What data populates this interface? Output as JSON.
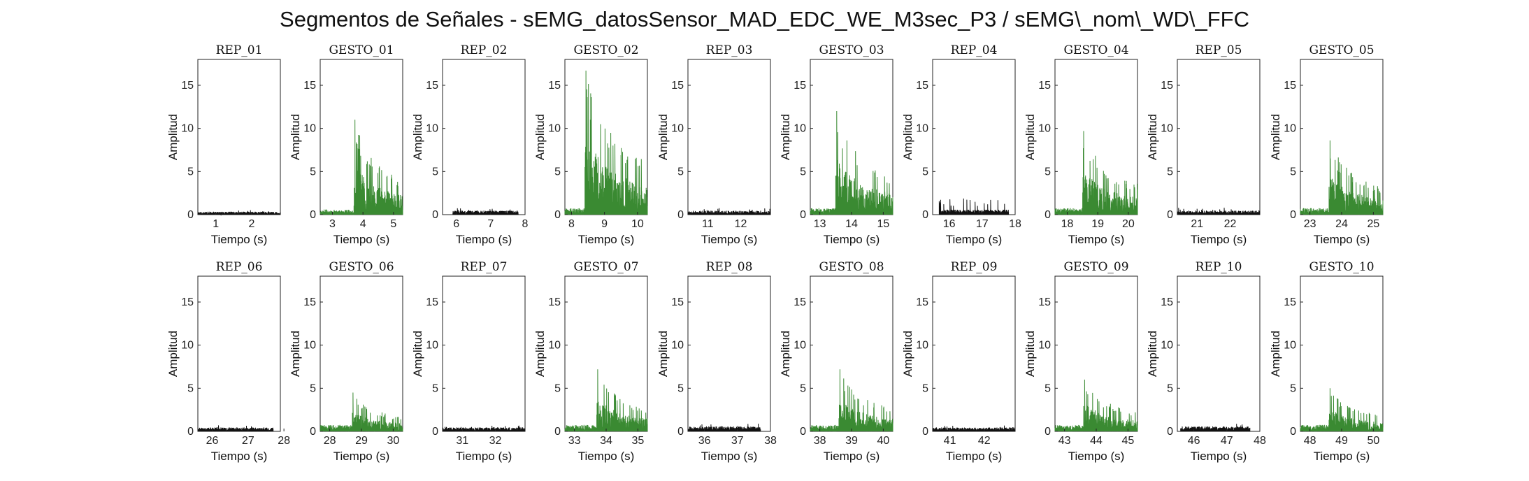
{
  "figure": {
    "title": "Segmentos de Señales - sEMG_datosSensor_MAD_EDC_WE_M3sec_P3 / sEMG\\_nom\\_WD\\_FFC"
  },
  "colors": {
    "rep": "#111111",
    "gesto": "#3a8a32",
    "axis": "#222222",
    "background": "#ffffff"
  },
  "chart_data": [
    {
      "type": "line",
      "title": "REP_01",
      "xlabel": "Tiempo (s)",
      "ylabel": "Amplitud",
      "xlim": [
        0.5,
        2.8
      ],
      "ylim": [
        0,
        18
      ],
      "xticks": [
        1,
        2
      ],
      "yticks": [
        0,
        5,
        10,
        15
      ],
      "series": [
        {
          "kind": "rep",
          "t0": 0.5,
          "t1": 2.8,
          "onset": null,
          "base": 0.3,
          "peak": 0.6
        }
      ]
    },
    {
      "type": "line",
      "title": "GESTO_01",
      "xlabel": "Tiempo (s)",
      "ylabel": "Amplitud",
      "xlim": [
        2.6,
        5.3
      ],
      "ylim": [
        0,
        18
      ],
      "xticks": [
        3,
        4,
        5
      ],
      "yticks": [
        0,
        5,
        10,
        15
      ],
      "series": [
        {
          "kind": "gesto",
          "t0": 2.6,
          "t1": 5.3,
          "onset": 3.7,
          "base": 0.4,
          "peak": 11.0
        }
      ]
    },
    {
      "type": "line",
      "title": "REP_02",
      "xlabel": "Tiempo (s)",
      "ylabel": "Amplitud",
      "xlim": [
        5.6,
        8.0
      ],
      "ylim": [
        0,
        18
      ],
      "xticks": [
        6,
        7,
        8
      ],
      "yticks": [
        0,
        5,
        10,
        15
      ],
      "series": [
        {
          "kind": "rep",
          "t0": 5.9,
          "t1": 7.8,
          "onset": null,
          "base": 0.4,
          "peak": 0.8
        }
      ]
    },
    {
      "type": "line",
      "title": "GESTO_02",
      "xlabel": "Tiempo (s)",
      "ylabel": "Amplitud",
      "xlim": [
        7.8,
        10.3
      ],
      "ylim": [
        0,
        18
      ],
      "xticks": [
        8,
        9,
        10
      ],
      "yticks": [
        0,
        5,
        10,
        15
      ],
      "series": [
        {
          "kind": "gesto",
          "t0": 7.8,
          "t1": 10.3,
          "onset": 8.4,
          "base": 0.5,
          "peak": 16.7
        }
      ]
    },
    {
      "type": "line",
      "title": "REP_03",
      "xlabel": "Tiempo (s)",
      "ylabel": "Amplitud",
      "xlim": [
        10.4,
        12.9
      ],
      "ylim": [
        0,
        18
      ],
      "xticks": [
        11,
        12
      ],
      "yticks": [
        0,
        5,
        10,
        15
      ],
      "series": [
        {
          "kind": "rep",
          "t0": 10.4,
          "t1": 12.9,
          "onset": null,
          "base": 0.4,
          "peak": 0.8
        }
      ]
    },
    {
      "type": "line",
      "title": "GESTO_03",
      "xlabel": "Tiempo (s)",
      "ylabel": "Amplitud",
      "xlim": [
        12.7,
        15.3
      ],
      "ylim": [
        0,
        18
      ],
      "xticks": [
        13,
        14,
        15
      ],
      "yticks": [
        0,
        5,
        10,
        15
      ],
      "series": [
        {
          "kind": "gesto",
          "t0": 12.7,
          "t1": 15.3,
          "onset": 13.5,
          "base": 0.5,
          "peak": 12.0
        }
      ]
    },
    {
      "type": "line",
      "title": "REP_04",
      "xlabel": "Tiempo (s)",
      "ylabel": "Amplitud",
      "xlim": [
        15.5,
        18.0
      ],
      "ylim": [
        0,
        18
      ],
      "xticks": [
        16,
        17,
        18
      ],
      "yticks": [
        0,
        5,
        10,
        15
      ],
      "series": [
        {
          "kind": "rep",
          "t0": 15.7,
          "t1": 17.8,
          "onset": null,
          "base": 0.5,
          "peak": 2.0
        }
      ]
    },
    {
      "type": "line",
      "title": "GESTO_04",
      "xlabel": "Tiempo (s)",
      "ylabel": "Amplitud",
      "xlim": [
        17.6,
        20.3
      ],
      "ylim": [
        0,
        18
      ],
      "xticks": [
        18,
        19,
        20
      ],
      "yticks": [
        0,
        5,
        10,
        15
      ],
      "series": [
        {
          "kind": "gesto",
          "t0": 17.6,
          "t1": 20.3,
          "onset": 18.5,
          "base": 0.5,
          "peak": 9.7
        }
      ]
    },
    {
      "type": "line",
      "title": "REP_05",
      "xlabel": "Tiempo (s)",
      "ylabel": "Amplitud",
      "xlim": [
        20.4,
        22.9
      ],
      "ylim": [
        0,
        18
      ],
      "xticks": [
        21,
        22
      ],
      "yticks": [
        0,
        5,
        10,
        15
      ],
      "series": [
        {
          "kind": "rep",
          "t0": 20.4,
          "t1": 22.9,
          "onset": null,
          "base": 0.4,
          "peak": 0.8
        }
      ]
    },
    {
      "type": "line",
      "title": "GESTO_05",
      "xlabel": "Tiempo (s)",
      "ylabel": "Amplitud",
      "xlim": [
        22.7,
        25.3
      ],
      "ylim": [
        0,
        18
      ],
      "xticks": [
        23,
        24,
        25
      ],
      "yticks": [
        0,
        5,
        10,
        15
      ],
      "series": [
        {
          "kind": "gesto",
          "t0": 22.7,
          "t1": 25.3,
          "onset": 23.6,
          "base": 0.5,
          "peak": 8.6
        }
      ]
    },
    {
      "type": "line",
      "title": "REP_06",
      "xlabel": "Tiempo (s)",
      "ylabel": "Amplitud",
      "xlim": [
        25.6,
        27.9
      ],
      "ylim": [
        0,
        18
      ],
      "xticks": [
        26,
        27,
        28
      ],
      "yticks": [
        0,
        5,
        10,
        15
      ],
      "series": [
        {
          "kind": "rep",
          "t0": 25.6,
          "t1": 27.7,
          "onset": null,
          "base": 0.4,
          "peak": 0.7
        }
      ]
    },
    {
      "type": "line",
      "title": "GESTO_06",
      "xlabel": "Tiempo (s)",
      "ylabel": "Amplitud",
      "xlim": [
        27.7,
        30.3
      ],
      "ylim": [
        0,
        18
      ],
      "xticks": [
        28,
        29,
        30
      ],
      "yticks": [
        0,
        5,
        10,
        15
      ],
      "series": [
        {
          "kind": "gesto",
          "t0": 27.7,
          "t1": 30.3,
          "onset": 28.7,
          "base": 0.5,
          "peak": 4.5
        }
      ]
    },
    {
      "type": "line",
      "title": "REP_07",
      "xlabel": "Tiempo (s)",
      "ylabel": "Amplitud",
      "xlim": [
        30.4,
        32.9
      ],
      "ylim": [
        0,
        18
      ],
      "xticks": [
        31,
        32
      ],
      "yticks": [
        0,
        5,
        10,
        15
      ],
      "series": [
        {
          "kind": "rep",
          "t0": 30.4,
          "t1": 32.9,
          "onset": null,
          "base": 0.4,
          "peak": 0.8
        }
      ]
    },
    {
      "type": "line",
      "title": "GESTO_07",
      "xlabel": "Tiempo (s)",
      "ylabel": "Amplitud",
      "xlim": [
        32.7,
        35.3
      ],
      "ylim": [
        0,
        18
      ],
      "xticks": [
        33,
        34,
        35
      ],
      "yticks": [
        0,
        5,
        10,
        15
      ],
      "series": [
        {
          "kind": "gesto",
          "t0": 32.7,
          "t1": 35.3,
          "onset": 33.7,
          "base": 0.5,
          "peak": 7.2
        }
      ]
    },
    {
      "type": "line",
      "title": "REP_08",
      "xlabel": "Tiempo (s)",
      "ylabel": "Amplitud",
      "xlim": [
        35.5,
        38.0
      ],
      "ylim": [
        0,
        18
      ],
      "xticks": [
        36,
        37,
        38
      ],
      "yticks": [
        0,
        5,
        10,
        15
      ],
      "series": [
        {
          "kind": "rep",
          "t0": 35.5,
          "t1": 37.7,
          "onset": null,
          "base": 0.5,
          "peak": 0.9
        }
      ]
    },
    {
      "type": "line",
      "title": "GESTO_08",
      "xlabel": "Tiempo (s)",
      "ylabel": "Amplitud",
      "xlim": [
        37.7,
        40.3
      ],
      "ylim": [
        0,
        18
      ],
      "xticks": [
        38,
        39,
        40
      ],
      "yticks": [
        0,
        5,
        10,
        15
      ],
      "series": [
        {
          "kind": "gesto",
          "t0": 37.7,
          "t1": 40.3,
          "onset": 38.6,
          "base": 0.5,
          "peak": 7.2
        }
      ]
    },
    {
      "type": "line",
      "title": "REP_09",
      "xlabel": "Tiempo (s)",
      "ylabel": "Amplitud",
      "xlim": [
        40.5,
        42.9
      ],
      "ylim": [
        0,
        18
      ],
      "xticks": [
        41,
        42
      ],
      "yticks": [
        0,
        5,
        10,
        15
      ],
      "series": [
        {
          "kind": "rep",
          "t0": 40.5,
          "t1": 42.9,
          "onset": null,
          "base": 0.4,
          "peak": 0.7
        }
      ]
    },
    {
      "type": "line",
      "title": "GESTO_09",
      "xlabel": "Tiempo (s)",
      "ylabel": "Amplitud",
      "xlim": [
        42.7,
        45.3
      ],
      "ylim": [
        0,
        18
      ],
      "xticks": [
        43,
        44,
        45
      ],
      "yticks": [
        0,
        5,
        10,
        15
      ],
      "series": [
        {
          "kind": "gesto",
          "t0": 42.7,
          "t1": 45.3,
          "onset": 43.6,
          "base": 0.5,
          "peak": 6.0
        }
      ]
    },
    {
      "type": "line",
      "title": "REP_10",
      "xlabel": "Tiempo (s)",
      "ylabel": "Amplitud",
      "xlim": [
        45.5,
        48.0
      ],
      "ylim": [
        0,
        18
      ],
      "xticks": [
        46,
        47,
        48
      ],
      "yticks": [
        0,
        5,
        10,
        15
      ],
      "series": [
        {
          "kind": "rep",
          "t0": 45.6,
          "t1": 47.7,
          "onset": null,
          "base": 0.5,
          "peak": 0.9
        }
      ]
    },
    {
      "type": "line",
      "title": "GESTO_10",
      "xlabel": "Tiempo (s)",
      "ylabel": "Amplitud",
      "xlim": [
        47.7,
        50.3
      ],
      "ylim": [
        0,
        18
      ],
      "xticks": [
        48,
        49,
        50
      ],
      "yticks": [
        0,
        5,
        10,
        15
      ],
      "series": [
        {
          "kind": "gesto",
          "t0": 47.7,
          "t1": 50.3,
          "onset": 48.6,
          "base": 0.5,
          "peak": 5.0
        }
      ]
    }
  ]
}
